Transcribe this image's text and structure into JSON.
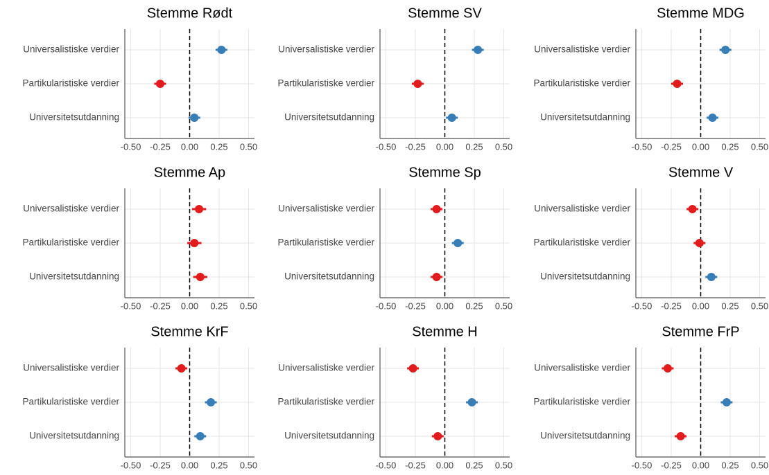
{
  "chart_data": [
    {
      "type": "dot",
      "title": "Stemme Rødt",
      "categories": [
        "Universalistiske verdier",
        "Partikularistiske verdier",
        "Universitetsutdanning"
      ],
      "values": [
        0.27,
        -0.25,
        0.04
      ],
      "errors": [
        0.05,
        0.05,
        0.05
      ],
      "colors": [
        "#377eb8",
        "#e41a1c",
        "#377eb8"
      ],
      "xlim": [
        -0.55,
        0.55
      ],
      "xticks": [
        {
          "value": -0.5,
          "label": "-0.50"
        },
        {
          "value": -0.25,
          "label": "-0.25"
        },
        {
          "value": 0,
          "label": "0.00"
        },
        {
          "value": 0.25,
          "label": "0.25"
        },
        {
          "value": 0.5,
          "label": "0.50"
        }
      ],
      "vline": 0,
      "grid": true
    },
    {
      "type": "dot",
      "title": "Stemme SV",
      "categories": [
        "Universalistiske verdier",
        "Partikularistiske verdier",
        "Universitetsutdanning"
      ],
      "values": [
        0.28,
        -0.23,
        0.06
      ],
      "errors": [
        0.05,
        0.05,
        0.05
      ],
      "colors": [
        "#377eb8",
        "#e41a1c",
        "#377eb8"
      ],
      "xlim": [
        -0.55,
        0.55
      ],
      "xticks": [
        {
          "value": -0.5,
          "label": "-0.50"
        },
        {
          "value": -0.25,
          "label": "-0.25"
        },
        {
          "value": 0,
          "label": "0.00"
        },
        {
          "value": 0.25,
          "label": "0.25"
        },
        {
          "value": 0.5,
          "label": "0.50"
        }
      ],
      "vline": 0,
      "grid": true
    },
    {
      "type": "dot",
      "title": "Stemme MDG",
      "categories": [
        "Universalistiske verdier",
        "Partikularistiske verdier",
        "Universitetsutdanning"
      ],
      "values": [
        0.21,
        -0.2,
        0.1
      ],
      "errors": [
        0.05,
        0.05,
        0.05
      ],
      "colors": [
        "#377eb8",
        "#e41a1c",
        "#377eb8"
      ],
      "xlim": [
        -0.55,
        0.55
      ],
      "xticks": [
        {
          "value": -0.5,
          "label": "-0.50"
        },
        {
          "value": -0.25,
          "label": "-0.25"
        },
        {
          "value": 0,
          "label": "0.00"
        },
        {
          "value": 0.25,
          "label": "0.25"
        },
        {
          "value": 0.5,
          "label": "0.50"
        }
      ],
      "vline": 0,
      "grid": true
    },
    {
      "type": "dot",
      "title": "Stemme Ap",
      "categories": [
        "Universalistiske verdier",
        "Partikularistiske verdier",
        "Universitetsutdanning"
      ],
      "values": [
        0.08,
        0.04,
        0.09
      ],
      "errors": [
        0.06,
        0.06,
        0.06
      ],
      "colors": [
        "#e41a1c",
        "#e41a1c",
        "#e41a1c"
      ],
      "xlim": [
        -0.55,
        0.55
      ],
      "xticks": [
        {
          "value": -0.5,
          "label": "-0.50"
        },
        {
          "value": -0.25,
          "label": "-0.25"
        },
        {
          "value": 0,
          "label": "0.00"
        },
        {
          "value": 0.25,
          "label": "0.25"
        },
        {
          "value": 0.5,
          "label": "0.50"
        }
      ],
      "vline": 0,
      "grid": true
    },
    {
      "type": "dot",
      "title": "Stemme Sp",
      "categories": [
        "Universalistiske verdier",
        "Partikularistiske verdier",
        "Universitetsutdanning"
      ],
      "values": [
        -0.07,
        0.11,
        -0.07
      ],
      "errors": [
        0.05,
        0.05,
        0.05
      ],
      "colors": [
        "#e41a1c",
        "#377eb8",
        "#e41a1c"
      ],
      "xlim": [
        -0.55,
        0.55
      ],
      "xticks": [
        {
          "value": -0.5,
          "label": "-0.50"
        },
        {
          "value": -0.25,
          "label": "-0.25"
        },
        {
          "value": 0,
          "label": "0.00"
        },
        {
          "value": 0.25,
          "label": "0.25"
        },
        {
          "value": 0.5,
          "label": "0.50"
        }
      ],
      "vline": 0,
      "grid": true
    },
    {
      "type": "dot",
      "title": "Stemme V",
      "categories": [
        "Universalistiske verdier",
        "Partikularistiske verdier",
        "Universitetsutdanning"
      ],
      "values": [
        -0.07,
        -0.01,
        0.09
      ],
      "errors": [
        0.05,
        0.05,
        0.05
      ],
      "colors": [
        "#e41a1c",
        "#e41a1c",
        "#377eb8"
      ],
      "xlim": [
        -0.55,
        0.55
      ],
      "xticks": [
        {
          "value": -0.5,
          "label": "-0.50"
        },
        {
          "value": -0.25,
          "label": "-0.25"
        },
        {
          "value": 0,
          "label": "0.00"
        },
        {
          "value": 0.25,
          "label": "0.25"
        },
        {
          "value": 0.5,
          "label": "0.50"
        }
      ],
      "vline": 0,
      "grid": true
    },
    {
      "type": "dot",
      "title": "Stemme KrF",
      "categories": [
        "Universalistiske verdier",
        "Partikularistiske verdier",
        "Universitetsutdanning"
      ],
      "values": [
        -0.07,
        0.18,
        0.09
      ],
      "errors": [
        0.05,
        0.05,
        0.05
      ],
      "colors": [
        "#e41a1c",
        "#377eb8",
        "#377eb8"
      ],
      "xlim": [
        -0.55,
        0.55
      ],
      "xticks": [
        {
          "value": -0.5,
          "label": "-0.50"
        },
        {
          "value": -0.25,
          "label": "-0.25"
        },
        {
          "value": 0,
          "label": "0.00"
        },
        {
          "value": 0.25,
          "label": "0.25"
        },
        {
          "value": 0.5,
          "label": "0.50"
        }
      ],
      "vline": 0,
      "grid": true
    },
    {
      "type": "dot",
      "title": "Stemme H",
      "categories": [
        "Universalistiske verdier",
        "Partikularistiske verdier",
        "Universitetsutdanning"
      ],
      "values": [
        -0.27,
        0.23,
        -0.06
      ],
      "errors": [
        0.05,
        0.05,
        0.05
      ],
      "colors": [
        "#e41a1c",
        "#377eb8",
        "#e41a1c"
      ],
      "xlim": [
        -0.55,
        0.55
      ],
      "xticks": [
        {
          "value": -0.5,
          "label": "-0.50"
        },
        {
          "value": -0.25,
          "label": "-0.25"
        },
        {
          "value": 0,
          "label": "0.00"
        },
        {
          "value": 0.25,
          "label": "0.25"
        },
        {
          "value": 0.5,
          "label": "0.50"
        }
      ],
      "vline": 0,
      "grid": true
    },
    {
      "type": "dot",
      "title": "Stemme FrP",
      "categories": [
        "Universalistiske verdier",
        "Partikularistiske verdier",
        "Universitetsutdanning"
      ],
      "values": [
        -0.28,
        0.22,
        -0.17
      ],
      "errors": [
        0.05,
        0.05,
        0.05
      ],
      "colors": [
        "#e41a1c",
        "#377eb8",
        "#e41a1c"
      ],
      "xlim": [
        -0.55,
        0.55
      ],
      "xticks": [
        {
          "value": -0.5,
          "label": "-0.50"
        },
        {
          "value": -0.25,
          "label": "-0.25"
        },
        {
          "value": 0,
          "label": "0.00"
        },
        {
          "value": 0.25,
          "label": "0.25"
        },
        {
          "value": 0.5,
          "label": "0.50"
        }
      ],
      "vline": 0,
      "grid": true
    }
  ]
}
